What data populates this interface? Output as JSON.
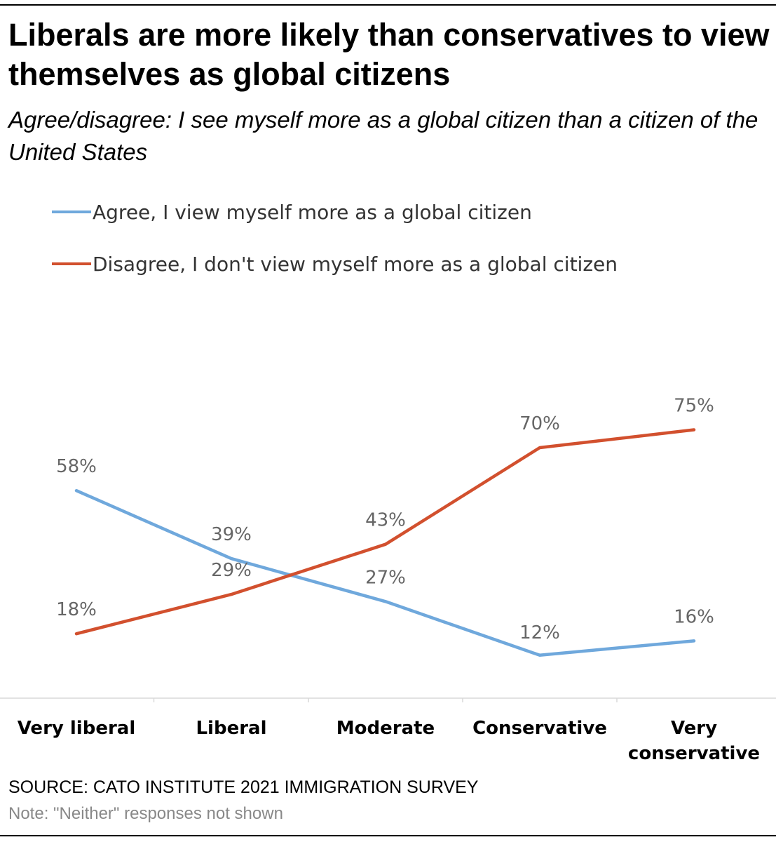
{
  "chart_data": {
    "type": "line",
    "title": "Liberals are more likely than conservatives to view themselves as global citizens",
    "subtitle": "Agree/disagree: I see myself more as a global citizen than a citizen of the United States",
    "categories": [
      "Very liberal",
      "Liberal",
      "Moderate",
      "Conservative",
      "Very conservative"
    ],
    "series": [
      {
        "name": "Agree, I view myself more as a global citizen",
        "color": "#6fa8dc",
        "values": [
          58,
          39,
          27,
          12,
          16
        ],
        "labels": [
          "58%",
          "39%",
          "27%",
          "12%",
          "16%"
        ]
      },
      {
        "name": "Disagree, I don't view myself more as a global citizen",
        "color": "#d2502e",
        "values": [
          18,
          29,
          43,
          70,
          75
        ],
        "labels": [
          "18%",
          "29%",
          "43%",
          "70%",
          "75%"
        ]
      }
    ],
    "ylim": [
      0,
      80
    ],
    "grid": false,
    "legend_position": "top-left",
    "source": "SOURCE: CATO INSTITUTE 2021 IMMIGRATION SURVEY",
    "note": "Note: \"Neither\" responses not shown"
  }
}
